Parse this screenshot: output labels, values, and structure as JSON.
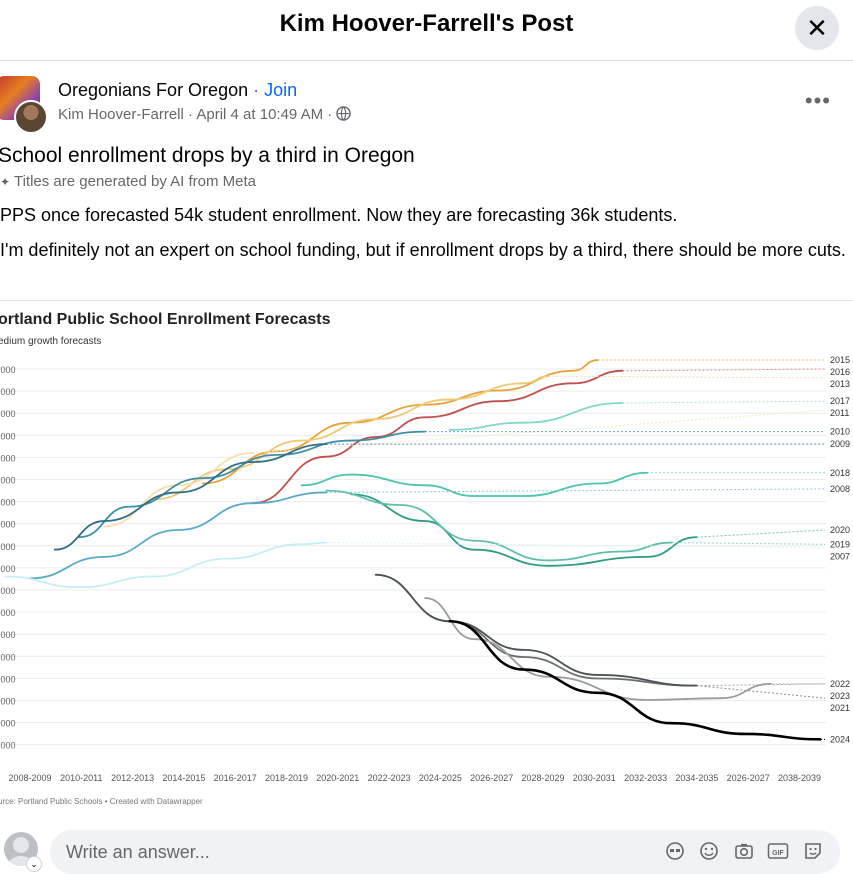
{
  "header": {
    "title": "Kim Hoover-Farrell's Post",
    "close_icon": "close-icon"
  },
  "post": {
    "group_name": "Oregonians For Oregon",
    "separator": " · ",
    "join_label": "Join",
    "author": "Kim Hoover-Farrell",
    "date": "April 4 at 10:49 AM",
    "privacy_icon": "globe-icon",
    "more_icon": "more-icon",
    "title": "School enrollment drops by a third in Oregon",
    "ai_note": "Titles are generated by AI from Meta",
    "paragraphs": [
      "PPS once forecasted 54k student enrollment. Now they are forecasting 36k students.",
      "I'm definitely not an expert on school funding, but if enrollment drops by a third, there should be more cuts."
    ]
  },
  "chart_data": {
    "type": "line",
    "title": "ortland Public School Enrollment Forecasts",
    "subtitle": "edium growth forecasts",
    "source": "urce: Portland Public Schools • Created with Datawrapper",
    "x_ticks": [
      "2008-2009",
      "2010-2011",
      "2012-2013",
      "2014-2015",
      "2016-2017",
      "2018-2019",
      "2020-2021",
      "2022-2023",
      "2024-2025",
      "2026-2027",
      "2028-2029",
      "2030-2031",
      "2032-2033",
      "2034-2035",
      "2026-2027",
      "2038-2039"
    ],
    "y_tick_labels": [
      ",000",
      ",000",
      ",000",
      ",000",
      ",000",
      ",000",
      ",000",
      ",000",
      ",000",
      ",000",
      ",000",
      ",000",
      ",000",
      ",000",
      ",000",
      ",000",
      ",000",
      ",000"
    ],
    "series": [
      {
        "name": "2015",
        "color": "#e8a23a",
        "projection": "#f0c878",
        "points": [
          [
            2015,
            49.6
          ],
          [
            2018,
            51.4
          ],
          [
            2021,
            53.0
          ],
          [
            2024,
            54.0
          ],
          [
            2027,
            54.8
          ],
          [
            2030,
            55.9
          ],
          [
            2031,
            56.5
          ]
        ],
        "proj_to": 56.5
      },
      {
        "name": "2016",
        "color": "#c0504d",
        "projection": "#d08a88",
        "points": [
          [
            2017,
            48.5
          ],
          [
            2020,
            51.1
          ],
          [
            2022,
            52.2
          ],
          [
            2024,
            53.3
          ],
          [
            2027,
            54.2
          ],
          [
            2030,
            55.2
          ],
          [
            2032,
            55.9
          ]
        ],
        "proj_to": 56.0
      },
      {
        "name": "2013",
        "color": "#f0c878",
        "projection": "#f3d9a6",
        "points": [
          [
            2013,
            48.7
          ],
          [
            2016,
            50.4
          ],
          [
            2019,
            52.0
          ],
          [
            2022,
            53.2
          ],
          [
            2025,
            54.3
          ],
          [
            2028,
            55.2
          ],
          [
            2029,
            55.6
          ]
        ],
        "proj_to": 55.5
      },
      {
        "name": "2017",
        "color": "#7fd8c9",
        "projection": "#a9e6da",
        "points": [
          [
            2025,
            52.6
          ],
          [
            2028,
            53.0
          ],
          [
            2032,
            54.1
          ]
        ],
        "proj_to": 54.2
      },
      {
        "name": "2011",
        "color": "#f6e0b0",
        "projection": "#f6e6c4",
        "points": [
          [
            2011,
            47.2
          ],
          [
            2014,
            49.5
          ],
          [
            2017,
            51.3
          ]
        ],
        "proj_to": 53.7
      },
      {
        "name": "2010",
        "color": "#3e8fa3",
        "projection": "#6ba8b8",
        "points": [
          [
            2010,
            46.6
          ],
          [
            2012,
            48.3
          ],
          [
            2015,
            49.9
          ],
          [
            2018,
            51.2
          ],
          [
            2021,
            52.0
          ],
          [
            2024,
            52.5
          ]
        ],
        "proj_to": 52.5
      },
      {
        "name": "2009",
        "color": "#2f6f87",
        "projection": "#5f8fa3",
        "points": [
          [
            2009,
            45.9
          ],
          [
            2011,
            47.5
          ],
          [
            2014,
            49.1
          ],
          [
            2017,
            50.8
          ],
          [
            2020,
            51.8
          ]
        ],
        "proj_to": 51.8
      },
      {
        "name": "2018",
        "color": "#4cc3ad",
        "projection": "#86d8c8",
        "points": [
          [
            2019,
            49.5
          ],
          [
            2021,
            50.1
          ],
          [
            2024,
            49.5
          ],
          [
            2026,
            48.9
          ],
          [
            2028,
            48.9
          ],
          [
            2031,
            49.6
          ],
          [
            2033,
            50.2
          ]
        ],
        "proj_to": 50.2
      },
      {
        "name": "2008",
        "color": "#5aa9c9",
        "projection": "#8fc3d8",
        "points": [
          [
            2008,
            44.3
          ],
          [
            2011,
            45.5
          ],
          [
            2014,
            47.0
          ],
          [
            2017,
            48.5
          ],
          [
            2020,
            49.1
          ]
        ],
        "proj_to": 49.3
      },
      {
        "name": "2020",
        "color": "#2e9c86",
        "projection": "#72bfaf",
        "points": [
          [
            2021,
            49.0
          ],
          [
            2024,
            47.5
          ],
          [
            2026,
            45.9
          ],
          [
            2029,
            45.0
          ],
          [
            2033,
            45.5
          ],
          [
            2035,
            46.6
          ]
        ],
        "proj_to": 47.0
      },
      {
        "name": "2019",
        "color": "#5fbfa9",
        "projection": "#95d3c4",
        "points": [
          [
            2020,
            49.2
          ],
          [
            2023,
            48.4
          ],
          [
            2026,
            46.4
          ],
          [
            2029,
            45.3
          ],
          [
            2032,
            45.8
          ],
          [
            2034,
            46.3
          ]
        ],
        "proj_to": 46.2
      },
      {
        "name": "2007",
        "color": "#c6eef5",
        "projection": "#d9f3f8",
        "points": [
          [
            2007,
            44.4
          ],
          [
            2010,
            43.8
          ],
          [
            2013,
            44.4
          ],
          [
            2016,
            45.4
          ],
          [
            2019,
            46.2
          ],
          [
            2020,
            46.3
          ]
        ],
        "proj_to": 46.0
      },
      {
        "name": "2022",
        "color": "#6d6f70",
        "projection": "#a0a2a3",
        "points": [
          [
            2022,
            44.5
          ],
          [
            2025,
            41.9
          ],
          [
            2028,
            39.9
          ],
          [
            2031,
            38.7
          ],
          [
            2035,
            38.3
          ]
        ],
        "proj_to": 38.4
      },
      {
        "name": "2023",
        "color": "#9a9c9d",
        "projection": "#b8b9ba",
        "points": [
          [
            2024,
            43.2
          ],
          [
            2026,
            40.9
          ],
          [
            2029,
            38.8
          ],
          [
            2033,
            37.5
          ],
          [
            2036,
            37.6
          ],
          [
            2038,
            38.4
          ]
        ],
        "proj_to": 38.4
      },
      {
        "name": "2021",
        "color": "#4a5258",
        "projection": "#8a9095",
        "points": [
          [
            2022,
            44.5
          ],
          [
            2025,
            41.9
          ],
          [
            2028,
            40.3
          ],
          [
            2031,
            38.9
          ],
          [
            2035,
            38.3
          ]
        ],
        "proj_to": 37.6
      },
      {
        "name": "2024",
        "color": "#000000",
        "projection": "#000000",
        "points": [
          [
            2025,
            41.9
          ],
          [
            2028,
            39.2
          ],
          [
            2031,
            37.9
          ],
          [
            2034,
            36.2
          ],
          [
            2037,
            35.6
          ],
          [
            2040,
            35.3
          ]
        ],
        "proj_to": 35.3
      }
    ]
  },
  "composer": {
    "placeholder": "Write an answer...",
    "icons": [
      "avatar-sticker-icon",
      "emoji-icon",
      "camera-icon",
      "gif-icon",
      "sticker-icon"
    ]
  }
}
